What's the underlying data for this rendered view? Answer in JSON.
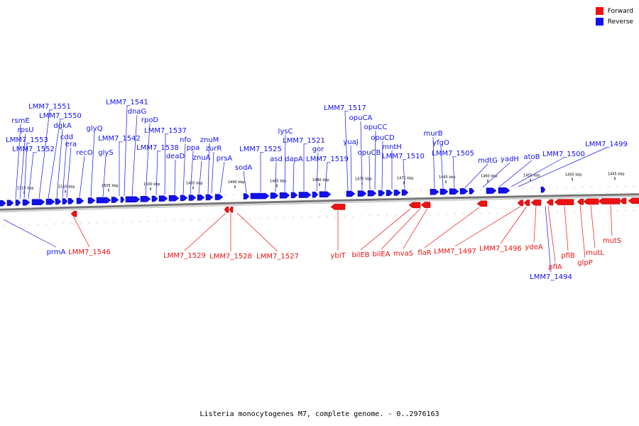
{
  "caption": "Listeria monocytogenes M7, complete genome. - 0..2976163",
  "legend": [
    {
      "label": "Forward",
      "color": "#ee1111"
    },
    {
      "label": "Reverse",
      "color": "#1111ee"
    }
  ],
  "colors": {
    "forward": "#ee1111",
    "reverse": "#1111ee",
    "axis": "#777777"
  },
  "scale_labels": [
    "1515 kbp",
    "1510 kbp",
    "1505 kbp",
    "1500 kbp",
    "1495 kbp",
    "1490 kbp",
    "1485 kbp",
    "1480 kbp",
    "1475 kbp",
    "1470 kbp",
    "1465 kbp",
    "1460 kbp",
    "1455 kbp",
    "1450 kbp",
    "1445 kbp"
  ],
  "reverse_labels": [
    "rsmE",
    "rpsU",
    "LMM7_1553",
    "LMM7_1552",
    "LMM7_1551",
    "LMM7_1550",
    "dgkA",
    "cdd",
    "era",
    "recO",
    "glyQ",
    "glyS",
    "LMM7_1542",
    "LMM7_1541",
    "dnaG",
    "rpoD",
    "LMM7_1538",
    "LMM7_1537",
    "deaD",
    "nfo",
    "ppa",
    "znuA",
    "zurR",
    "znuM",
    "prsA",
    "sodA",
    "LMM7_1525",
    "asd",
    "lysC",
    "dapA",
    "LMM7_1521",
    "gor",
    "LMM7_1519",
    "LMM7_1517",
    "yuaJ",
    "opuCA",
    "opuCB",
    "opuCC",
    "opuCD",
    "mntH",
    "LMM7_1510",
    "murB",
    "yfgO",
    "LMM7_1505",
    "mdtG",
    "yadH",
    "atoB",
    "LMM7_1500",
    "LMM7_1499",
    "prmA",
    "LMM7_1494"
  ],
  "forward_labels": [
    "LMM7_1546",
    "LMM7_1529",
    "LMM7_1528",
    "LMM7_1527",
    "ybiT",
    "bilEB",
    "bilEA",
    "mvaS",
    "flaR",
    "LMM7_1497",
    "LMM7_1496",
    "ydeA",
    "pflA",
    "pflB",
    "glpP",
    "mutL",
    "mutS"
  ]
}
